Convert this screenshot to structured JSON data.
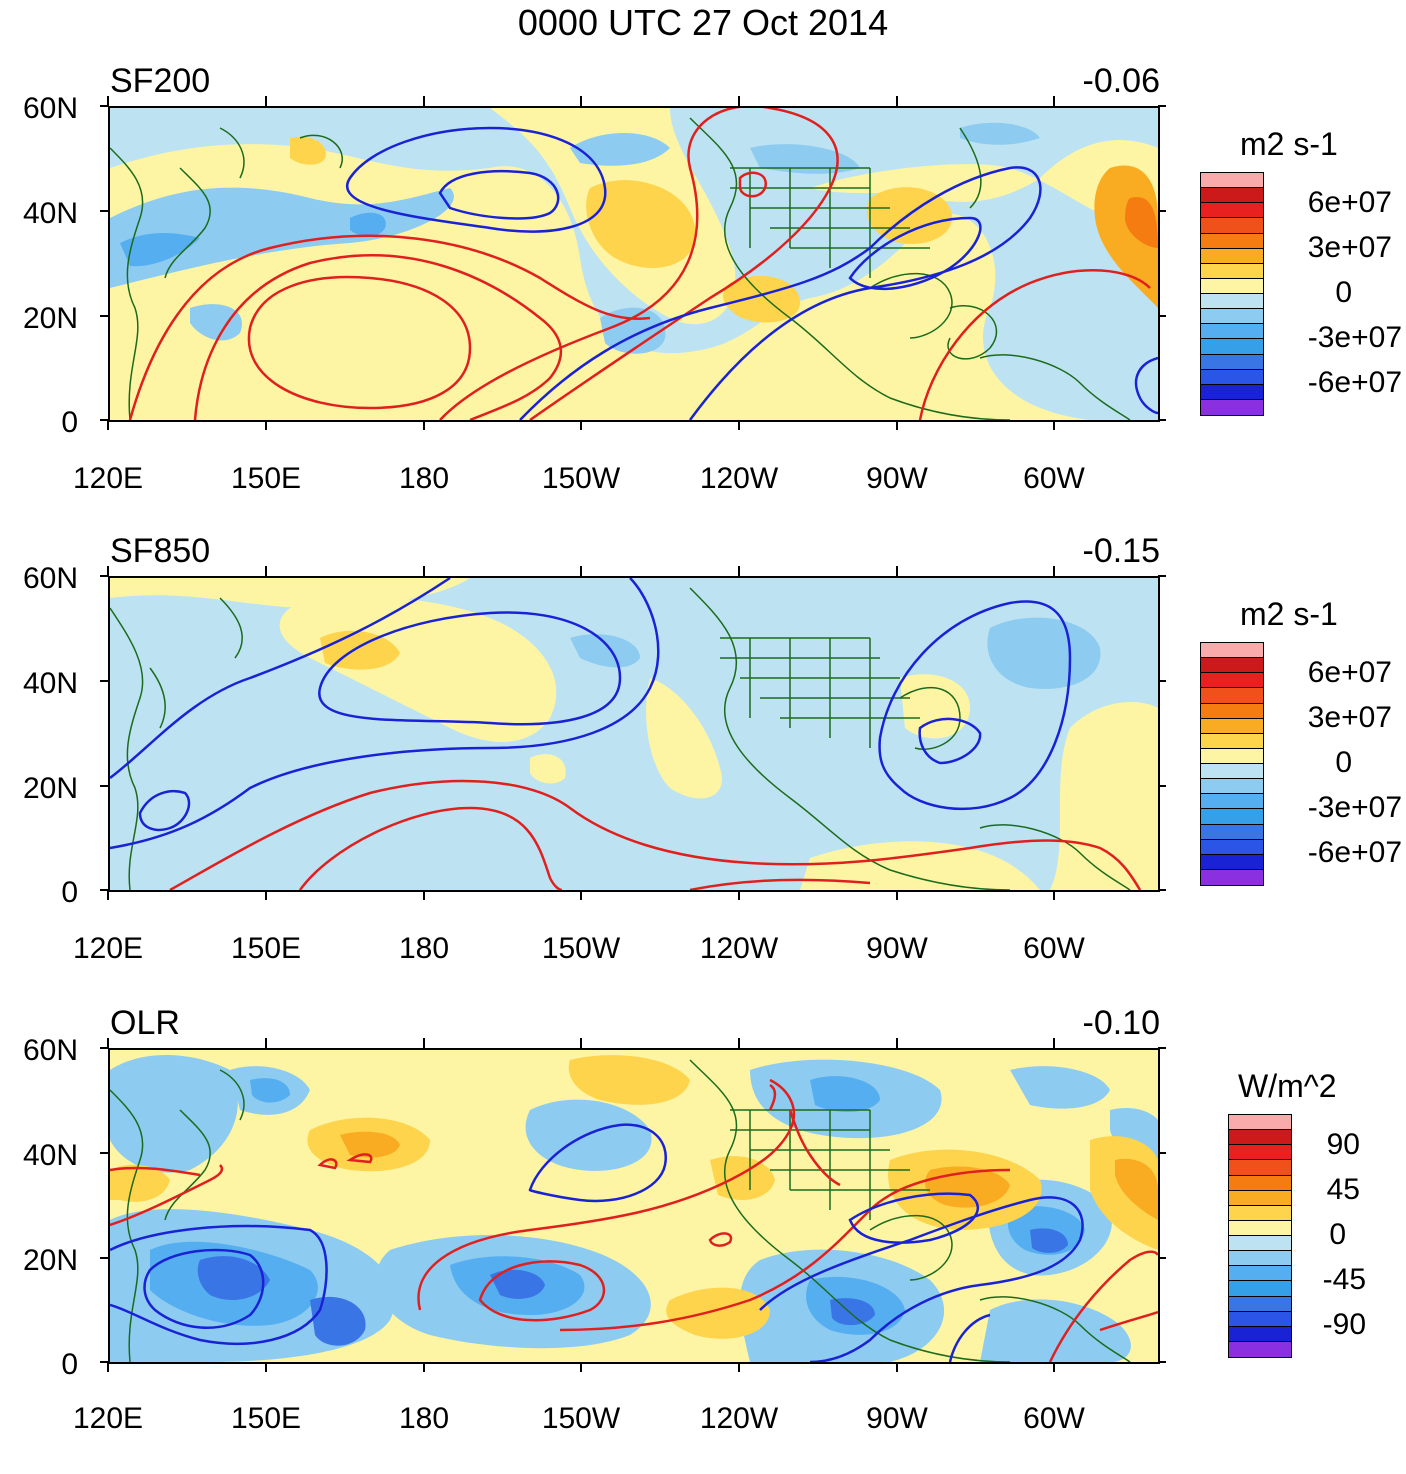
{
  "title": "0000 UTC 27 Oct 2014",
  "colors": {
    "contour_positive": "#e0201f",
    "contour_negative": "#1a22d6",
    "coastline": "#1c6b1c",
    "shade_neg_light": "#bde3f2",
    "shade_neg_mid": "#8ecbf0",
    "shade_neg_strong": "#55aef0",
    "shade_neg_deep": "#3a75e6",
    "shade_neg_max": "#2a2fe6",
    "shade_pos_light": "#fdf5a4",
    "shade_pos_mid": "#fdd44c",
    "shade_pos_strong": "#f9ac22",
    "shade_pos_max": "#f57c10"
  },
  "axes": {
    "lat_ticks": [
      "60N",
      "40N",
      "20N",
      "0"
    ],
    "lon_ticks": [
      "120E",
      "150E",
      "180",
      "150W",
      "120W",
      "90W",
      "60W"
    ]
  },
  "panels": [
    {
      "id": "sf200",
      "label": "SF200",
      "correlation": "-0.06",
      "units": "m2 s-1",
      "legend_ticks": [
        "6e+07",
        "3e+07",
        "0",
        "-3e+07",
        "-6e+07"
      ],
      "legend_colors": [
        "#f9aaaa",
        "#cc1a1a",
        "#e8201f",
        "#f0501a",
        "#f57c10",
        "#f9ac22",
        "#fdd44c",
        "#fdf5a4",
        "#bde3f2",
        "#8ecbf0",
        "#55aef0",
        "#35a0e8",
        "#3a75e6",
        "#2a55e6",
        "#1a22d6",
        "#8a30e0"
      ]
    },
    {
      "id": "sf850",
      "label": "SF850",
      "correlation": "-0.15",
      "units": "m2 s-1",
      "legend_ticks": [
        "6e+07",
        "3e+07",
        "0",
        "-3e+07",
        "-6e+07"
      ],
      "legend_colors": [
        "#f9aaaa",
        "#cc1a1a",
        "#e8201f",
        "#f0501a",
        "#f57c10",
        "#f9ac22",
        "#fdd44c",
        "#fdf5a4",
        "#bde3f2",
        "#8ecbf0",
        "#55aef0",
        "#35a0e8",
        "#3a75e6",
        "#2a55e6",
        "#1a22d6",
        "#8a30e0"
      ]
    },
    {
      "id": "olr",
      "label": "OLR",
      "correlation": "-0.10",
      "units": "W/m^2",
      "legend_ticks": [
        "90",
        "45",
        "0",
        "-45",
        "-90"
      ],
      "legend_colors": [
        "#f9aaaa",
        "#cc1a1a",
        "#e8201f",
        "#f0501a",
        "#f57c10",
        "#f9ac22",
        "#fdd44c",
        "#fdf5a4",
        "#bde3f2",
        "#8ecbf0",
        "#55aef0",
        "#35a0e8",
        "#3a75e6",
        "#2a55e6",
        "#1a22d6",
        "#8a30e0"
      ]
    }
  ]
}
